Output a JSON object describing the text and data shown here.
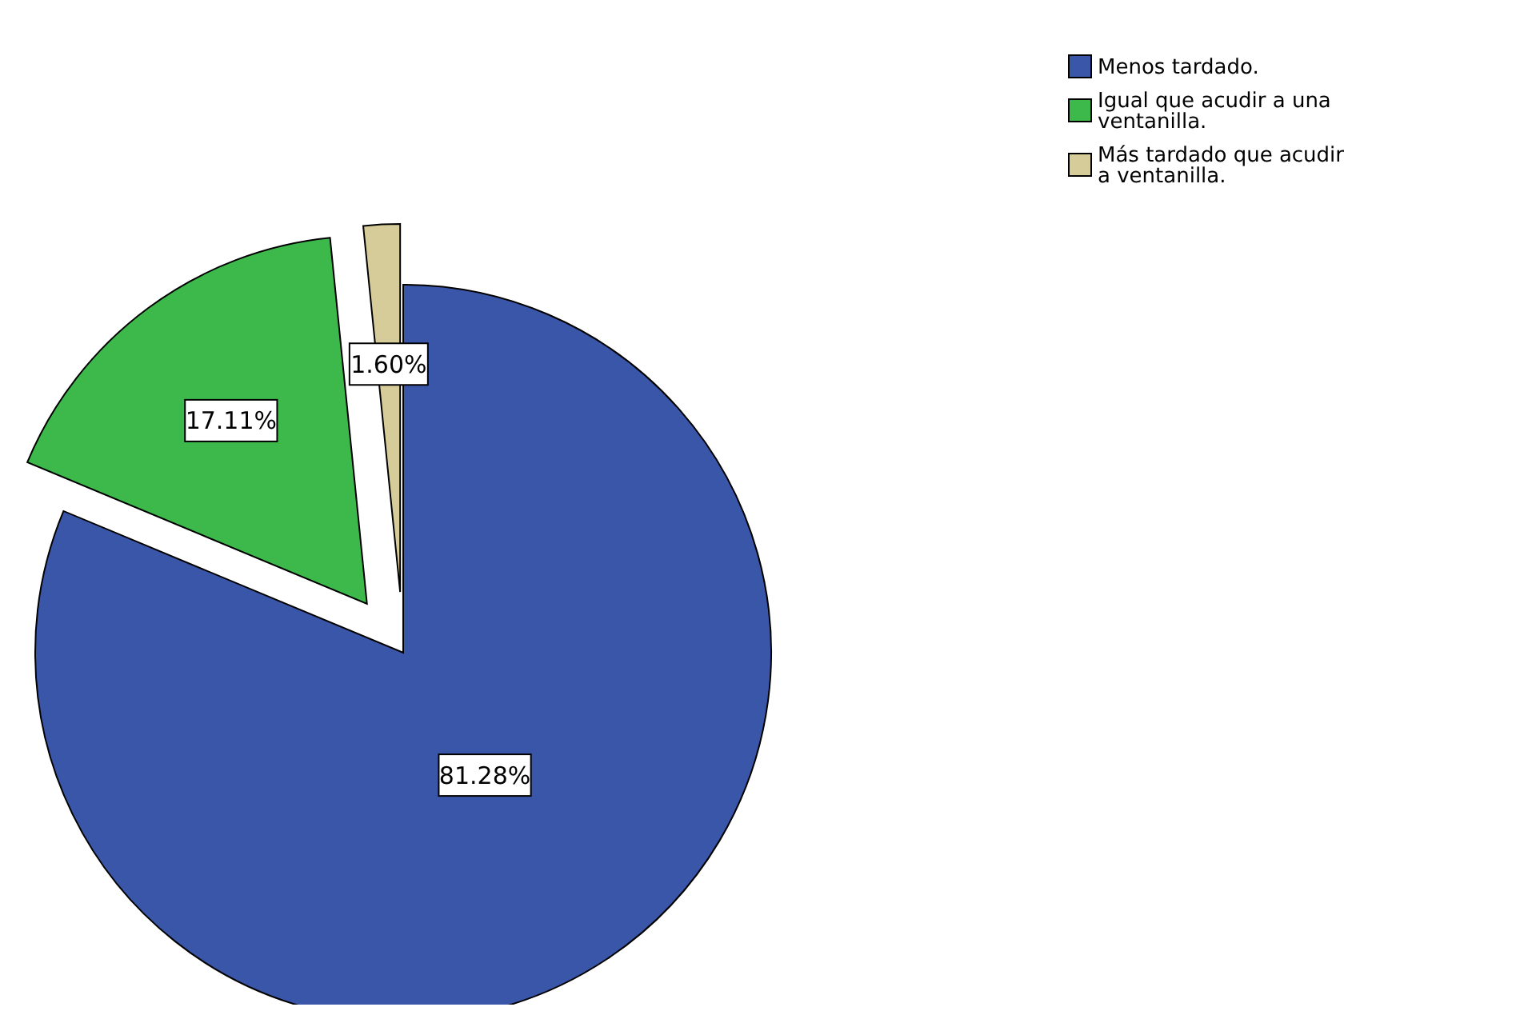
{
  "chart_data": {
    "type": "pie",
    "categories": [
      "Menos tardado.",
      "Igual que acudir a una ventanilla.",
      "Más tardado que acudir a ventanilla."
    ],
    "values": [
      81.28,
      17.11,
      1.6
    ],
    "colors": [
      "#3a56a8",
      "#3cb94a",
      "#d6cc9a"
    ],
    "value_labels": [
      "81.28%",
      "17.11%",
      "1.60%"
    ],
    "legend": "top right"
  }
}
